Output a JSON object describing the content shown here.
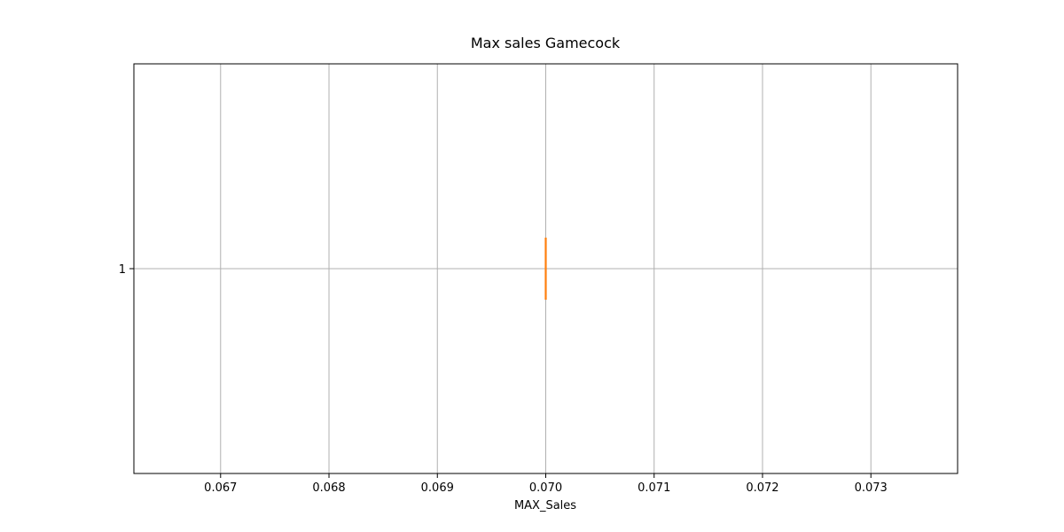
{
  "chart_data": {
    "type": "boxplot",
    "title": "Max sales Gamecock",
    "xlabel": "MAX_Sales",
    "ylabel": "",
    "orientation": "horizontal",
    "xlim": [
      0.0662,
      0.0738
    ],
    "ylim": [
      0.5,
      1.5
    ],
    "x_ticks": [
      0.067,
      0.068,
      0.069,
      0.07,
      0.071,
      0.072,
      0.073
    ],
    "x_tick_labels": [
      "0.067",
      "0.068",
      "0.069",
      "0.070",
      "0.071",
      "0.072",
      "0.073"
    ],
    "y_ticks": [
      1
    ],
    "y_tick_labels": [
      "1"
    ],
    "grid": true,
    "boxes": [
      {
        "position": 1,
        "min": 0.07,
        "q1": 0.07,
        "median": 0.07,
        "q3": 0.07,
        "max": 0.07
      }
    ],
    "colors": {
      "box": "#000000",
      "median": "#ff7f0e",
      "grid": "#b0b0b0",
      "frame": "#000000"
    }
  }
}
